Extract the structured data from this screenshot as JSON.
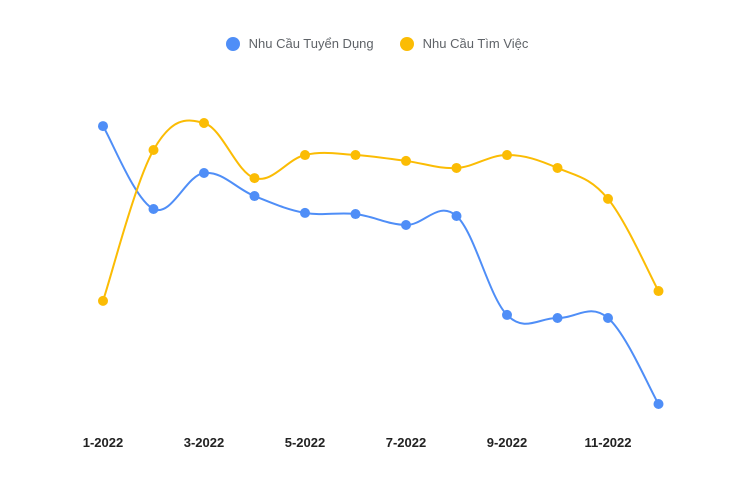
{
  "legend": {
    "series": [
      {
        "label": "Nhu Cầu Tuyển Dụng",
        "color": "#4f8ef7"
      },
      {
        "label": "Nhu Cầu Tìm Việc",
        "color": "#fbbc04"
      }
    ]
  },
  "chart_data": {
    "type": "line",
    "title": "",
    "xlabel": "",
    "ylabel": "",
    "x": [
      "1-2022",
      "2-2022",
      "3-2022",
      "4-2022",
      "5-2022",
      "6-2022",
      "7-2022",
      "8-2022",
      "9-2022",
      "10-2022",
      "11-2022",
      "12-2022"
    ],
    "tick_labels": [
      "1-2022",
      "3-2022",
      "5-2022",
      "7-2022",
      "9-2022",
      "11-2022"
    ],
    "y_scale_note": "No y-axis shown; values are relative indices (0-100) estimated from pixel positions",
    "ylim": [
      0,
      100
    ],
    "grid": false,
    "legend_position": "top",
    "smooth": true,
    "series": [
      {
        "name": "Nhu Cầu Tuyển Dụng",
        "color": "#4f8ef7",
        "values": [
          98.9,
          69.4,
          82.2,
          74.0,
          68.0,
          67.6,
          63.7,
          66.9,
          31.7,
          30.6,
          30.6,
          0.0
        ]
      },
      {
        "name": "Nhu Cầu Tìm Việc",
        "color": "#fbbc04",
        "values": [
          36.7,
          90.4,
          100.0,
          80.4,
          88.6,
          88.6,
          86.5,
          84.0,
          88.6,
          84.0,
          73.0,
          40.2
        ]
      }
    ]
  }
}
